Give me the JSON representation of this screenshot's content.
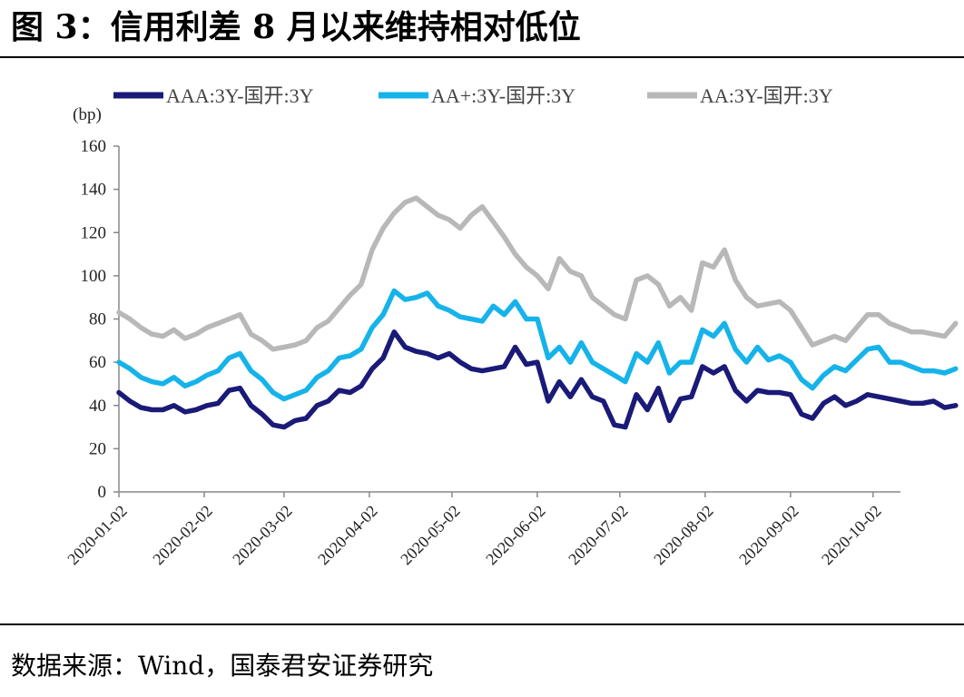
{
  "figure": {
    "title": "图 3：信用利差 8 月以来维持相对低位",
    "source": "数据来源：Wind，国泰君安证券研究"
  },
  "chart_data": {
    "type": "line",
    "title": "信用利差 8 月以来维持相对低位",
    "ylabel": "(bp)",
    "xlabel": "",
    "ylim": [
      0,
      160
    ],
    "yticks": [
      0,
      20,
      40,
      60,
      80,
      100,
      120,
      140,
      160
    ],
    "grid": false,
    "legend_position": "top",
    "x_tick_labels": [
      "2020-01-02",
      "2020-02-02",
      "2020-03-02",
      "2020-04-02",
      "2020-05-02",
      "2020-06-02",
      "2020-07-02",
      "2020-08-02",
      "2020-09-02",
      "2020-10-02"
    ],
    "x": [
      "2020-01-02",
      "2020-01-06",
      "2020-01-10",
      "2020-01-14",
      "2020-01-18",
      "2020-01-22",
      "2020-01-26",
      "2020-01-30",
      "2020-02-03",
      "2020-02-07",
      "2020-02-11",
      "2020-02-15",
      "2020-02-19",
      "2020-02-23",
      "2020-02-27",
      "2020-03-02",
      "2020-03-06",
      "2020-03-10",
      "2020-03-14",
      "2020-03-18",
      "2020-03-22",
      "2020-03-26",
      "2020-03-30",
      "2020-04-03",
      "2020-04-07",
      "2020-04-11",
      "2020-04-15",
      "2020-04-19",
      "2020-04-23",
      "2020-04-27",
      "2020-05-01",
      "2020-05-05",
      "2020-05-09",
      "2020-05-13",
      "2020-05-17",
      "2020-05-21",
      "2020-05-25",
      "2020-05-29",
      "2020-06-02",
      "2020-06-06",
      "2020-06-10",
      "2020-06-14",
      "2020-06-18",
      "2020-06-22",
      "2020-06-26",
      "2020-06-30",
      "2020-07-04",
      "2020-07-08",
      "2020-07-12",
      "2020-07-16",
      "2020-07-20",
      "2020-07-24",
      "2020-07-28",
      "2020-08-01",
      "2020-08-05",
      "2020-08-09",
      "2020-08-13",
      "2020-08-17",
      "2020-08-21",
      "2020-08-25",
      "2020-08-29",
      "2020-09-02",
      "2020-09-06",
      "2020-09-10",
      "2020-09-14",
      "2020-09-18",
      "2020-09-22",
      "2020-09-26",
      "2020-09-30",
      "2020-10-04",
      "2020-10-08",
      "2020-10-12",
      "2020-10-16",
      "2020-10-20",
      "2020-10-24",
      "2020-10-28",
      "2020-11-01"
    ],
    "series": [
      {
        "name": "AAA:3Y-国开:3Y",
        "color": "#1a1a78",
        "values": [
          46,
          42,
          39,
          38,
          38,
          40,
          37,
          38,
          40,
          41,
          47,
          48,
          40,
          36,
          31,
          30,
          33,
          34,
          40,
          42,
          47,
          46,
          49,
          57,
          62,
          74,
          67,
          65,
          64,
          62,
          64,
          60,
          57,
          56,
          57,
          58,
          67,
          59,
          60,
          42,
          51,
          44,
          52,
          44,
          42,
          31,
          30,
          45,
          38,
          48,
          33,
          43,
          44,
          58,
          55,
          58,
          47,
          42,
          47,
          46,
          46,
          45,
          36,
          34,
          41,
          44,
          40,
          42,
          45,
          44,
          43,
          42,
          41,
          41,
          42,
          39,
          40
        ]
      },
      {
        "name": "AA+:3Y-国开:3Y",
        "color": "#16b3ea",
        "values": [
          60,
          57,
          53,
          51,
          50,
          53,
          49,
          51,
          54,
          56,
          62,
          64,
          56,
          52,
          46,
          43,
          45,
          47,
          53,
          56,
          62,
          63,
          66,
          76,
          82,
          93,
          89,
          90,
          92,
          86,
          84,
          81,
          80,
          79,
          86,
          82,
          88,
          80,
          80,
          62,
          67,
          60,
          69,
          60,
          57,
          54,
          51,
          64,
          60,
          69,
          55,
          60,
          60,
          75,
          72,
          78,
          66,
          60,
          67,
          61,
          63,
          60,
          52,
          48,
          54,
          58,
          56,
          61,
          66,
          67,
          60,
          60,
          58,
          56,
          56,
          55,
          57
        ]
      },
      {
        "name": "AA:3Y-国开:3Y",
        "color": "#b8b8b8",
        "values": [
          83,
          80,
          76,
          73,
          72,
          75,
          71,
          73,
          76,
          78,
          80,
          82,
          73,
          70,
          66,
          67,
          68,
          70,
          76,
          79,
          85,
          91,
          96,
          112,
          122,
          129,
          134,
          136,
          132,
          128,
          126,
          122,
          128,
          132,
          125,
          118,
          110,
          104,
          100,
          94,
          108,
          102,
          100,
          90,
          86,
          82,
          80,
          98,
          100,
          96,
          86,
          90,
          84,
          106,
          104,
          112,
          98,
          90,
          86,
          87,
          88,
          84,
          76,
          68,
          70,
          72,
          70,
          76,
          82,
          82,
          78,
          76,
          74,
          74,
          73,
          72,
          78
        ]
      }
    ]
  }
}
